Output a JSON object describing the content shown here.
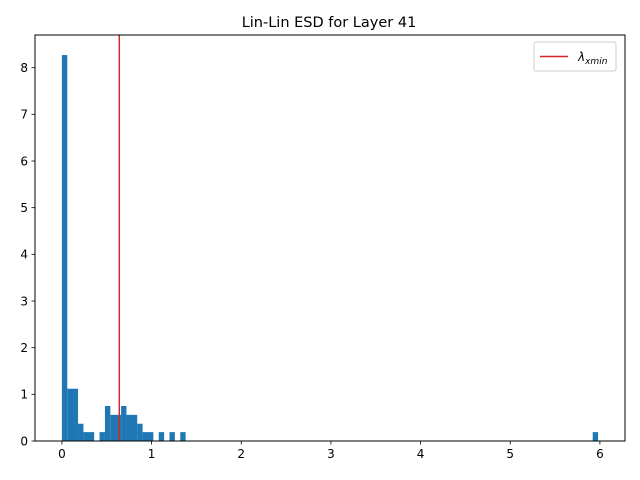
{
  "chart_data": {
    "type": "bar",
    "title": "Lin-Lin ESD for Layer 41",
    "xlabel": "",
    "ylabel": "",
    "xlim": [
      -0.3,
      6.28
    ],
    "ylim": [
      0,
      8.7
    ],
    "xticks": [
      0,
      1,
      2,
      3,
      4,
      5,
      6
    ],
    "yticks": [
      0,
      1,
      2,
      3,
      4,
      5,
      6,
      7,
      8
    ],
    "grid": false,
    "bar_color": "#1f77b4",
    "bins": [
      {
        "x0": 0.0,
        "x1": 0.06,
        "value": 8.27
      },
      {
        "x0": 0.06,
        "x1": 0.18,
        "value": 1.12
      },
      {
        "x0": 0.18,
        "x1": 0.24,
        "value": 0.37
      },
      {
        "x0": 0.24,
        "x1": 0.36,
        "value": 0.19
      },
      {
        "x0": 0.42,
        "x1": 0.48,
        "value": 0.19
      },
      {
        "x0": 0.48,
        "x1": 0.54,
        "value": 0.75
      },
      {
        "x0": 0.54,
        "x1": 0.66,
        "value": 0.56
      },
      {
        "x0": 0.66,
        "x1": 0.72,
        "value": 0.75
      },
      {
        "x0": 0.72,
        "x1": 0.84,
        "value": 0.56
      },
      {
        "x0": 0.84,
        "x1": 0.9,
        "value": 0.37
      },
      {
        "x0": 0.9,
        "x1": 1.02,
        "value": 0.19
      },
      {
        "x0": 1.08,
        "x1": 1.14,
        "value": 0.19
      },
      {
        "x0": 1.2,
        "x1": 1.26,
        "value": 0.19
      },
      {
        "x0": 1.32,
        "x1": 1.38,
        "value": 0.19
      },
      {
        "x0": 5.92,
        "x1": 5.98,
        "value": 0.19
      }
    ],
    "vline": {
      "x": 0.64,
      "color": "#d62728",
      "label": "λxmin"
    },
    "legend": {
      "placement": "top-right",
      "symbol": "λ",
      "subscript": "xmin"
    }
  }
}
